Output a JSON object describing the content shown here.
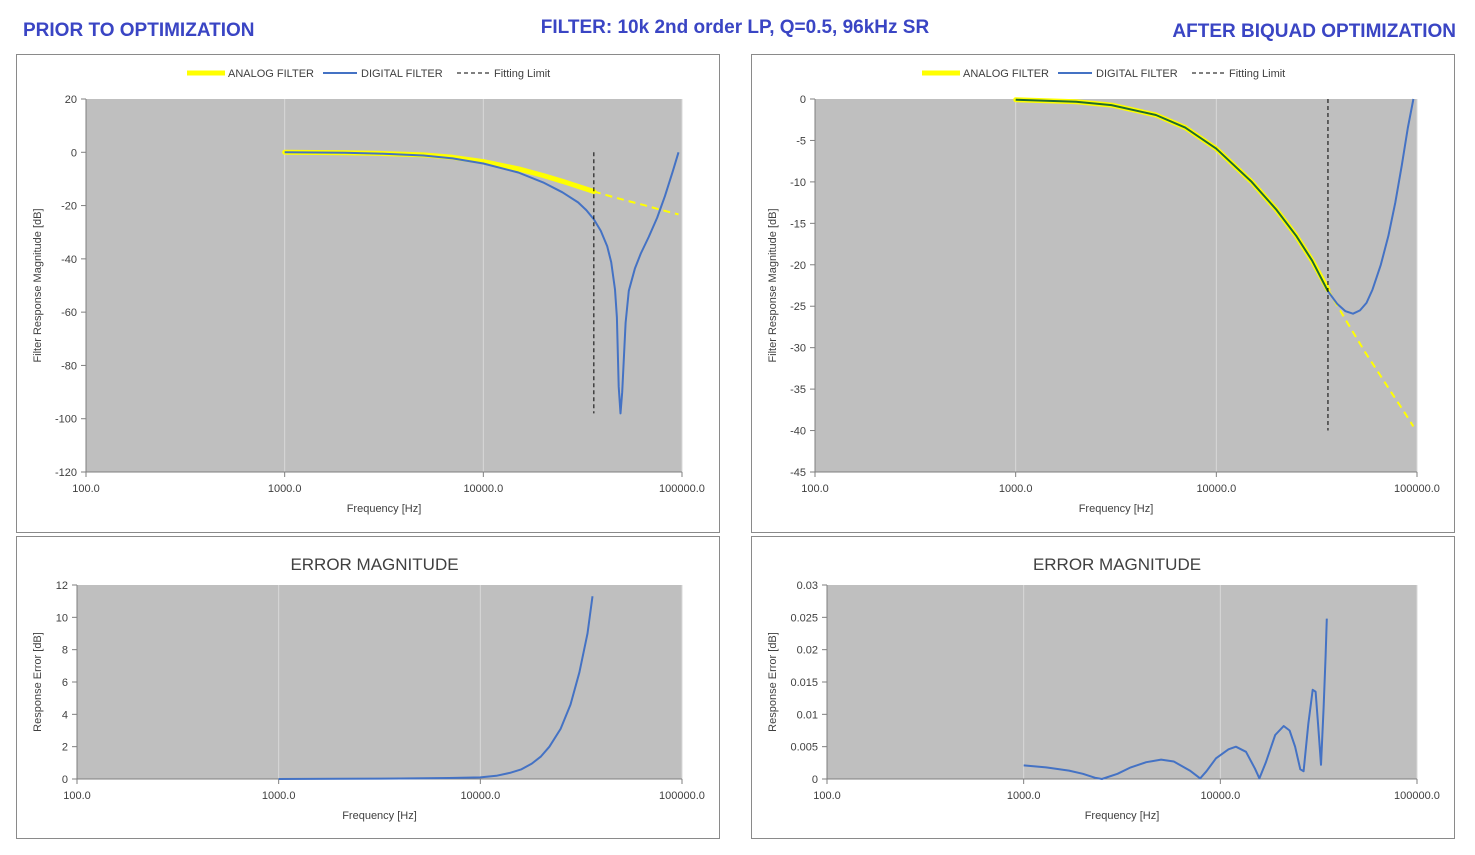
{
  "headers": {
    "left": "PRIOR TO OPTIMIZATION",
    "center": "FILTER: 10k 2nd order LP, Q=0.5, 96kHz SR",
    "right": "AFTER BIQUAD OPTIMIZATION"
  },
  "colors": {
    "analog": "#ffff00",
    "digital": "#4472c4",
    "overlap": "#1f6b2f",
    "plot_bg": "#bfbfbf",
    "grid": "#d9d9d9",
    "header": "#3a45c4"
  },
  "chart_data": [
    {
      "id": "before-response",
      "type": "line",
      "title": "",
      "xlabel": "Frequency [Hz]",
      "ylabel": "Filter Response Magnitude [dB]",
      "x_scale": "log",
      "xlim": [
        100,
        100000
      ],
      "ylim": [
        -120,
        20
      ],
      "y_ticks": [
        20,
        0,
        -20,
        -40,
        -60,
        -80,
        -100,
        -120
      ],
      "y_tick_labels": [
        "20",
        "0",
        "-20",
        "-40",
        "-60",
        "-80",
        "-100",
        "-120"
      ],
      "x_ticks": [
        100,
        1000,
        10000,
        100000
      ],
      "x_tick_labels": [
        "100.0",
        "1000.0",
        "10000.0",
        "100000.0"
      ],
      "legend_position": "top",
      "legend": [
        {
          "name": "ANALOG FILTER",
          "style": "thick-yellow"
        },
        {
          "name": "DIGITAL FILTER",
          "style": "solid-blue"
        },
        {
          "name": "Fitting Limit",
          "style": "dashed-black"
        }
      ],
      "fitting_limit": {
        "x": 36000,
        "y_range": [
          -98,
          0
        ]
      },
      "series": [
        {
          "name": "ANALOG FILTER",
          "role": "analog-fit",
          "x": [
            1000,
            2000,
            3000,
            5000,
            7000,
            10000,
            15000,
            20000,
            25000,
            30000,
            36000
          ],
          "y": [
            0.0,
            -0.2,
            -0.4,
            -1.0,
            -1.9,
            -3.5,
            -6.2,
            -8.7,
            -10.9,
            -12.8,
            -14.7
          ]
        },
        {
          "name": "ANALOG FILTER",
          "role": "analog-extended",
          "x": [
            36000,
            45000,
            55000,
            65000,
            75000,
            85000,
            96000
          ],
          "y": [
            -14.7,
            -16.8,
            -18.5,
            -19.9,
            -21.2,
            -22.3,
            -23.3
          ]
        },
        {
          "name": "DIGITAL FILTER",
          "x": [
            1000,
            2000,
            3000,
            5000,
            7000,
            10000,
            15000,
            20000,
            25000,
            30000,
            33000,
            36000,
            39000,
            42000,
            44000,
            46000,
            47000,
            48000,
            49000,
            50000,
            52000,
            54000,
            58000,
            62000,
            68000,
            75000,
            82000,
            90000,
            96000
          ],
          "y": [
            0.0,
            -0.2,
            -0.5,
            -1.2,
            -2.3,
            -4.2,
            -7.6,
            -11.3,
            -15.0,
            -18.8,
            -21.7,
            -25.2,
            -29.5,
            -35.3,
            -41.2,
            -51.5,
            -62.0,
            -88.0,
            -98.0,
            -90.0,
            -64.0,
            -52.0,
            -43.5,
            -38.0,
            -31.8,
            -24.5,
            -16.5,
            -7.0,
            0.0
          ]
        }
      ]
    },
    {
      "id": "after-response",
      "type": "line",
      "title": "",
      "xlabel": "Frequency [Hz]",
      "ylabel": "Filter Response Magnitude [dB]",
      "x_scale": "log",
      "xlim": [
        100,
        100000
      ],
      "ylim": [
        -45,
        0
      ],
      "y_ticks": [
        0,
        -5,
        -10,
        -15,
        -20,
        -25,
        -30,
        -35,
        -40,
        -45
      ],
      "y_tick_labels": [
        "0",
        "-5",
        "-10",
        "-15",
        "-20",
        "-25",
        "-30",
        "-35",
        "-40",
        "-45"
      ],
      "x_ticks": [
        100,
        1000,
        10000,
        100000
      ],
      "x_tick_labels": [
        "100.0",
        "1000.0",
        "10000.0",
        "100000.0"
      ],
      "legend_position": "top",
      "legend": [
        {
          "name": "ANALOG FILTER",
          "style": "thick-yellow"
        },
        {
          "name": "DIGITAL FILTER",
          "style": "solid-blue"
        },
        {
          "name": "Fitting Limit",
          "style": "dashed-black"
        }
      ],
      "fitting_limit": {
        "x": 36000,
        "y_range": [
          -40,
          0
        ]
      },
      "series": [
        {
          "name": "ANALOG FILTER",
          "role": "analog-fit",
          "x": [
            1000,
            2000,
            3000,
            5000,
            7000,
            10000,
            15000,
            20000,
            25000,
            30000,
            36000
          ],
          "y": [
            -0.09,
            -0.34,
            -0.74,
            -1.93,
            -3.45,
            -6.0,
            -10.0,
            -13.4,
            -16.5,
            -19.5,
            -23.0
          ]
        },
        {
          "name": "ANALOG FILTER",
          "role": "analog-extended",
          "x": [
            36000,
            45000,
            55000,
            65000,
            75000,
            85000,
            96000
          ],
          "y": [
            -23.0,
            -27.0,
            -30.5,
            -33.2,
            -35.5,
            -37.5,
            -39.5
          ]
        },
        {
          "name": "DIGITAL FILTER",
          "x": [
            1000,
            2000,
            3000,
            5000,
            7000,
            10000,
            15000,
            20000,
            25000,
            30000,
            36000,
            40000,
            44000,
            48000,
            52000,
            56000,
            60000,
            66000,
            72000,
            78000,
            84000,
            90000,
            96000
          ],
          "y": [
            -0.09,
            -0.34,
            -0.74,
            -1.93,
            -3.45,
            -6.0,
            -10.0,
            -13.4,
            -16.5,
            -19.5,
            -23.2,
            -24.7,
            -25.6,
            -25.9,
            -25.5,
            -24.6,
            -23.0,
            -20.0,
            -16.5,
            -12.5,
            -8.0,
            -3.5,
            0.0
          ]
        }
      ]
    },
    {
      "id": "before-error",
      "type": "line",
      "title": "ERROR MAGNITUDE",
      "xlabel": "Frequency [Hz]",
      "ylabel": "Response Error [dB]",
      "x_scale": "log",
      "xlim": [
        100,
        100000
      ],
      "ylim": [
        0,
        12
      ],
      "y_ticks": [
        12,
        10,
        8,
        6,
        4,
        2,
        0
      ],
      "y_tick_labels": [
        "12",
        "10",
        "8",
        "6",
        "4",
        "2",
        "0"
      ],
      "x_ticks": [
        100,
        1000,
        10000,
        100000
      ],
      "x_tick_labels": [
        "100.0",
        "1000.0",
        "10000.0",
        "100000.0"
      ],
      "series": [
        {
          "name": "ERROR",
          "x": [
            1000,
            2000,
            4000,
            7000,
            10000,
            12000,
            14000,
            16000,
            18000,
            20000,
            22000,
            25000,
            28000,
            31000,
            34000,
            36000
          ],
          "y": [
            0.0,
            0.01,
            0.03,
            0.06,
            0.1,
            0.2,
            0.38,
            0.6,
            0.95,
            1.4,
            2.0,
            3.1,
            4.6,
            6.6,
            9.0,
            11.3
          ]
        }
      ]
    },
    {
      "id": "after-error",
      "type": "line",
      "title": "ERROR MAGNITUDE",
      "xlabel": "Frequency [Hz]",
      "ylabel": "Response Error [dB]",
      "x_scale": "log",
      "xlim": [
        100,
        100000
      ],
      "ylim": [
        0,
        0.03
      ],
      "y_ticks": [
        0.03,
        0.025,
        0.02,
        0.015,
        0.01,
        0.005,
        0
      ],
      "y_tick_labels": [
        "0.03",
        "0.025",
        "0.02",
        "0.015",
        "0.01",
        "0.005",
        "0"
      ],
      "x_ticks": [
        100,
        1000,
        10000,
        100000
      ],
      "x_tick_labels": [
        "100.0",
        "1000.0",
        "10000.0",
        "100000.0"
      ],
      "series": [
        {
          "name": "ERROR",
          "x": [
            1000,
            1300,
            1700,
            2000,
            2300,
            2500,
            3000,
            3500,
            4200,
            5000,
            5800,
            7000,
            7900,
            8500,
            9500,
            11000,
            12000,
            13500,
            15000,
            15800,
            17000,
            19000,
            21000,
            22500,
            24000,
            25500,
            26500,
            28000,
            29500,
            30500,
            31500,
            32500,
            33500,
            34300,
            34800
          ],
          "y": [
            0.0021,
            0.0018,
            0.0013,
            0.0008,
            0.0002,
            0.0,
            0.0008,
            0.0018,
            0.0026,
            0.003,
            0.0027,
            0.0013,
            0.0001,
            0.0012,
            0.0032,
            0.0046,
            0.005,
            0.0042,
            0.0016,
            0.0001,
            0.0025,
            0.0068,
            0.0082,
            0.0075,
            0.005,
            0.0015,
            0.0012,
            0.0085,
            0.0138,
            0.0135,
            0.008,
            0.0022,
            0.011,
            0.019,
            0.0248
          ]
        }
      ]
    }
  ]
}
